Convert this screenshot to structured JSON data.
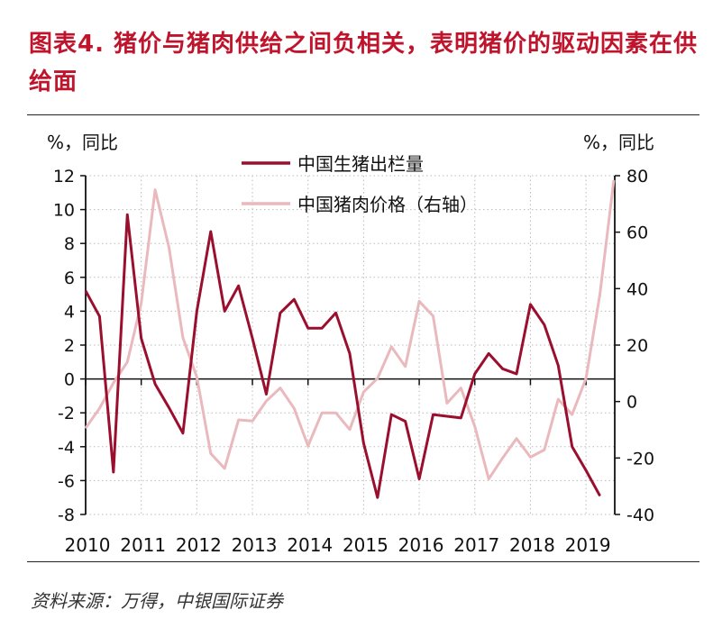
{
  "title": "图表4. 猪价与猪肉供给之间负相关，表明猪价的驱动因素在供给面",
  "source": "资料来源：万得，中银国际证券",
  "chart_data": {
    "type": "line",
    "title": "",
    "ylabel_left": "%，同比",
    "ylabel_right": "%，同比",
    "x_tick_labels": [
      "2010",
      "2011",
      "2012",
      "2013",
      "2014",
      "2015",
      "2016",
      "2017",
      "2018",
      "2019"
    ],
    "x_start": "2010Q1",
    "x_frequency": "quarterly",
    "ylim_left": [
      -8,
      12
    ],
    "yticks_left": [
      -8,
      -6,
      -4,
      -2,
      0,
      2,
      4,
      6,
      8,
      10,
      12
    ],
    "ylim_right": [
      -40,
      80
    ],
    "yticks_right": [
      -40,
      -20,
      0,
      20,
      40,
      60,
      80
    ],
    "grid": true,
    "legend_placement": "top-center",
    "colors": {
      "hog_slaughter": "#9b0f2e",
      "pork_price": "#e9b9bd",
      "title": "#c0142c"
    },
    "series": [
      {
        "name": "中国生猪出栏量",
        "axis": "left",
        "values": [
          5.2,
          3.7,
          -5.5,
          9.7,
          2.4,
          -0.3,
          -1.7,
          -3.2,
          4.0,
          8.7,
          4.0,
          5.5,
          2.4,
          -0.9,
          3.9,
          4.7,
          3.0,
          3.0,
          3.9,
          1.5,
          -3.8,
          -7.0,
          -2.1,
          -2.5,
          -5.9,
          -2.1,
          -2.2,
          -2.3,
          0.3,
          1.5,
          0.6,
          0.3,
          4.4,
          3.2,
          0.8,
          -4.0,
          -5.4,
          -6.9
        ]
      },
      {
        "name": "中国猪肉价格（右轴）",
        "axis": "right",
        "values": [
          -9.4,
          -2.4,
          6.6,
          14.0,
          34.8,
          75.0,
          54.5,
          22.6,
          8.7,
          -18.4,
          -23.7,
          -6.5,
          -6.9,
          0.2,
          4.8,
          -2.4,
          -15.7,
          -4.0,
          -4.0,
          -9.9,
          3.4,
          8.2,
          19.4,
          12.4,
          35.5,
          30.3,
          -0.6,
          4.8,
          -8.8,
          -27.4,
          -20.0,
          -13.1,
          -19.7,
          -17.1,
          0.8,
          -4.6,
          8.2,
          38.0,
          78.4
        ]
      }
    ]
  }
}
